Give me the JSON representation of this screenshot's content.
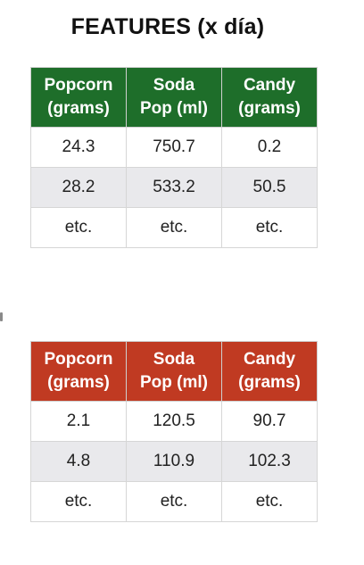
{
  "title": "FEATURES (x día)",
  "tables": [
    {
      "header_color": "#1e6e2a",
      "headers": [
        "Popcorn\n(grams)",
        "Soda\nPop (ml)",
        "Candy\n(grams)"
      ],
      "rows": [
        [
          "24.3",
          "750.7",
          "0.2"
        ],
        [
          "28.2",
          "533.2",
          "50.5"
        ],
        [
          "etc.",
          "etc.",
          "etc."
        ]
      ]
    },
    {
      "header_color": "#c03a22",
      "headers": [
        "Popcorn\n(grams)",
        "Soda\nPop (ml)",
        "Candy\n(grams)"
      ],
      "rows": [
        [
          "2.1",
          "120.5",
          "90.7"
        ],
        [
          "4.8",
          "110.9",
          "102.3"
        ],
        [
          "etc.",
          "etc.",
          "etc."
        ]
      ]
    }
  ]
}
